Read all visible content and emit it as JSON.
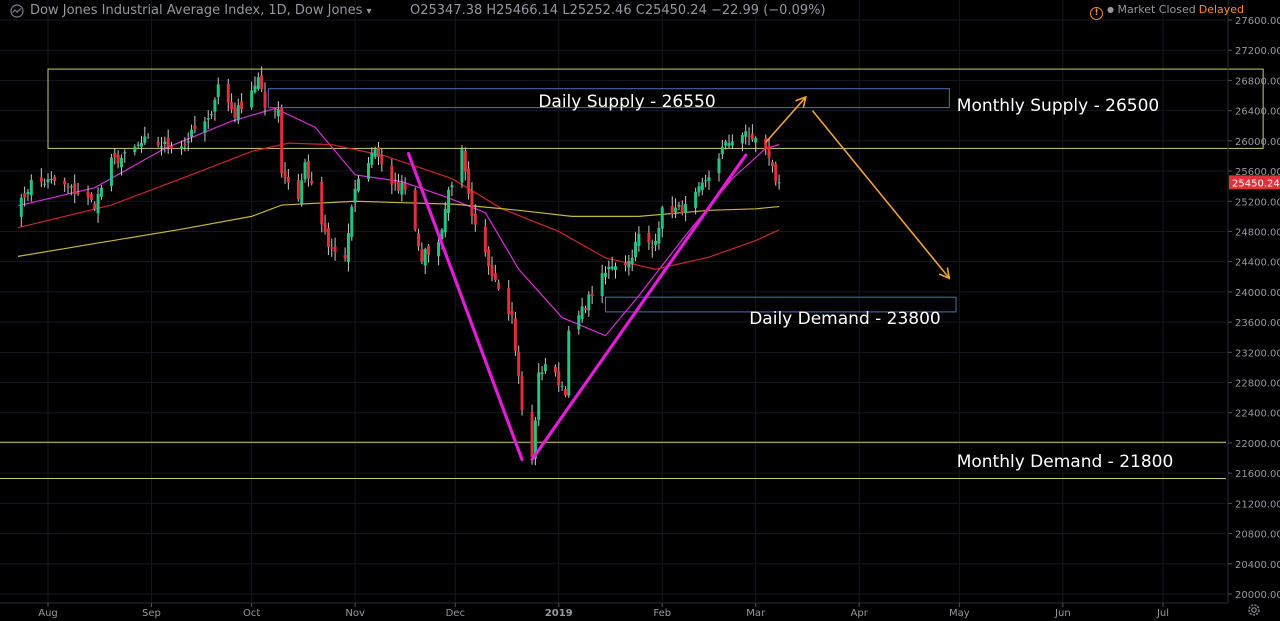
{
  "header": {
    "title": "Dow Jones Industrial Average Index, 1D, Dow Jones",
    "ohlc": "O25347.38  H25466.14  L25252.46  C25450.24  −22.99 (−0.09%)",
    "status": "Market Closed",
    "delayed": "Delayed",
    "icons": [
      "chart-settings-icon",
      "chevron-down-icon",
      "warning-icon",
      "gear-icon"
    ]
  },
  "chart_data": {
    "type": "candlestick",
    "xlabels": [
      "Aug",
      "Sep",
      "Oct",
      "Nov",
      "Dec",
      "2019",
      "Feb",
      "Mar",
      "Apr",
      "May",
      "Jun",
      "Jul"
    ],
    "yticks": [
      "27600.00",
      "27200.00",
      "26800.00",
      "26400.00",
      "26000.00",
      "25600.00",
      "25200.00",
      "24800.00",
      "24400.00",
      "24000.00",
      "23600.00",
      "23200.00",
      "22800.00",
      "22400.00",
      "22000.00",
      "21600.00",
      "21200.00",
      "20800.00",
      "20400.00",
      "20000.00"
    ],
    "ylim": [
      19950,
      27750
    ],
    "last_price": {
      "value": 25450.24,
      "label": "25450.24"
    },
    "candle_up_color": "#26c281",
    "candle_down_color": "#e0303a",
    "anchors": [
      [
        "2018-07-23",
        25100
      ],
      [
        "2018-07-27",
        25450
      ],
      [
        "2018-08-03",
        25460
      ],
      [
        "2018-08-10",
        25310
      ],
      [
        "2018-08-15",
        25160
      ],
      [
        "2018-08-20",
        25720
      ],
      [
        "2018-08-24",
        25790
      ],
      [
        "2018-08-30",
        26000
      ],
      [
        "2018-09-05",
        25940
      ],
      [
        "2018-09-11",
        25960
      ],
      [
        "2018-09-14",
        26150
      ],
      [
        "2018-09-18",
        26250
      ],
      [
        "2018-09-21",
        26740
      ],
      [
        "2018-09-26",
        26350
      ],
      [
        "2018-10-03",
        26820
      ],
      [
        "2018-10-05",
        26430
      ],
      [
        "2018-10-09",
        26430
      ],
      [
        "2018-10-10",
        25600
      ],
      [
        "2018-10-15",
        25250
      ],
      [
        "2018-10-17",
        25700
      ],
      [
        "2018-10-24",
        24580
      ],
      [
        "2018-10-29",
        24440
      ],
      [
        "2018-11-01",
        25380
      ],
      [
        "2018-11-07",
        25920
      ],
      [
        "2018-11-12",
        25380
      ],
      [
        "2018-11-16",
        25410
      ],
      [
        "2018-11-21",
        24460
      ],
      [
        "2018-11-26",
        24640
      ],
      [
        "2018-11-29",
        25340
      ],
      [
        "2018-12-03",
        25830
      ],
      [
        "2018-12-06",
        24950
      ],
      [
        "2018-12-11",
        24370
      ],
      [
        "2018-12-14",
        24100
      ],
      [
        "2018-12-18",
        23670
      ],
      [
        "2018-12-21",
        22440
      ],
      [
        "2018-12-24",
        21790
      ],
      [
        "2018-12-26",
        22880
      ],
      [
        "2018-12-28",
        23060
      ],
      [
        "2019-01-03",
        22700
      ],
      [
        "2019-01-04",
        23430
      ],
      [
        "2019-01-11",
        23990
      ],
      [
        "2019-01-17",
        24370
      ],
      [
        "2019-01-22",
        24400
      ],
      [
        "2019-01-25",
        24740
      ],
      [
        "2019-01-29",
        24580
      ],
      [
        "2019-02-01",
        25060
      ],
      [
        "2019-02-08",
        25110
      ],
      [
        "2019-02-14",
        25440
      ],
      [
        "2019-02-19",
        25890
      ],
      [
        "2019-02-22",
        26030
      ],
      [
        "2019-02-25",
        26090
      ],
      [
        "2019-03-01",
        26020
      ],
      [
        "2019-03-05",
        25800
      ],
      [
        "2019-03-07",
        25470
      ],
      [
        "2019-03-08",
        25450
      ]
    ],
    "moving_averages": [
      {
        "color": "#d631d6",
        "points": [
          [
            "2018-07-23",
            25140
          ],
          [
            "2018-08-15",
            25380
          ],
          [
            "2018-09-05",
            25900
          ],
          [
            "2018-09-25",
            26260
          ],
          [
            "2018-10-08",
            26430
          ],
          [
            "2018-10-20",
            26180
          ],
          [
            "2018-11-01",
            25550
          ],
          [
            "2018-11-15",
            25460
          ],
          [
            "2018-11-28",
            25260
          ],
          [
            "2018-12-10",
            25050
          ],
          [
            "2018-12-20",
            24300
          ],
          [
            "2019-01-02",
            23660
          ],
          [
            "2019-01-15",
            23420
          ],
          [
            "2019-01-25",
            23950
          ],
          [
            "2019-02-08",
            24750
          ],
          [
            "2019-02-22",
            25500
          ],
          [
            "2019-03-04",
            25900
          ],
          [
            "2019-03-08",
            25950
          ]
        ]
      },
      {
        "color": "#c8262c",
        "points": [
          [
            "2018-07-23",
            24850
          ],
          [
            "2018-08-20",
            25150
          ],
          [
            "2018-09-10",
            25500
          ],
          [
            "2018-10-01",
            25860
          ],
          [
            "2018-10-12",
            25970
          ],
          [
            "2018-10-25",
            25950
          ],
          [
            "2018-11-10",
            25800
          ],
          [
            "2018-11-30",
            25500
          ],
          [
            "2018-12-15",
            25100
          ],
          [
            "2019-01-01",
            24800
          ],
          [
            "2019-01-15",
            24450
          ],
          [
            "2019-01-30",
            24300
          ],
          [
            "2019-02-15",
            24460
          ],
          [
            "2019-03-01",
            24680
          ],
          [
            "2019-03-08",
            24820
          ]
        ]
      },
      {
        "color": "#c9b53a",
        "points": [
          [
            "2018-07-23",
            24470
          ],
          [
            "2018-08-15",
            24640
          ],
          [
            "2018-09-10",
            24830
          ],
          [
            "2018-10-01",
            25000
          ],
          [
            "2018-10-10",
            25150
          ],
          [
            "2018-11-01",
            25200
          ],
          [
            "2018-12-01",
            25160
          ],
          [
            "2018-12-20",
            25080
          ],
          [
            "2019-01-05",
            25000
          ],
          [
            "2019-01-25",
            25000
          ],
          [
            "2019-02-15",
            25080
          ],
          [
            "2019-03-01",
            25100
          ],
          [
            "2019-03-08",
            25130
          ]
        ]
      }
    ],
    "zones": [
      {
        "label": "Monthly Supply - 26500",
        "low": 25900,
        "high": 26950,
        "from": "2018-08-01",
        "to": "2019-07-31",
        "color": "#c9c86a"
      },
      {
        "label": "Daily Supply - 26550",
        "low": 26440,
        "high": 26690,
        "from": "2018-10-06",
        "to": "2019-04-28",
        "color": "#4f6fb8"
      },
      {
        "label": "Daily Demand - 23800",
        "low": 23735,
        "high": 23930,
        "from": "2019-01-15",
        "to": "2019-04-30",
        "color": "#4f6fb8"
      }
    ],
    "hlines": [
      {
        "label": "Monthly Demand - 21800",
        "value": 22010,
        "color": "#c9c86a"
      },
      {
        "value": 21530,
        "color": "#c9c86a"
      }
    ],
    "trendlines": [
      {
        "color": "#e21cd9",
        "points": [
          [
            "2018-11-17",
            25830
          ],
          [
            "2018-12-21",
            21780
          ]
        ]
      },
      {
        "color": "#e21cd9",
        "points": [
          [
            "2018-12-24",
            21780
          ],
          [
            "2019-02-26",
            25810
          ]
        ]
      }
    ],
    "arrows": [
      {
        "color": "#f0a23a",
        "points": [
          [
            "2019-03-04",
            25980
          ],
          [
            "2019-03-16",
            26580
          ]
        ]
      },
      {
        "color": "#f0a23a",
        "points": [
          [
            "2019-03-18",
            26400
          ],
          [
            "2019-04-28",
            24180
          ]
        ]
      }
    ]
  }
}
